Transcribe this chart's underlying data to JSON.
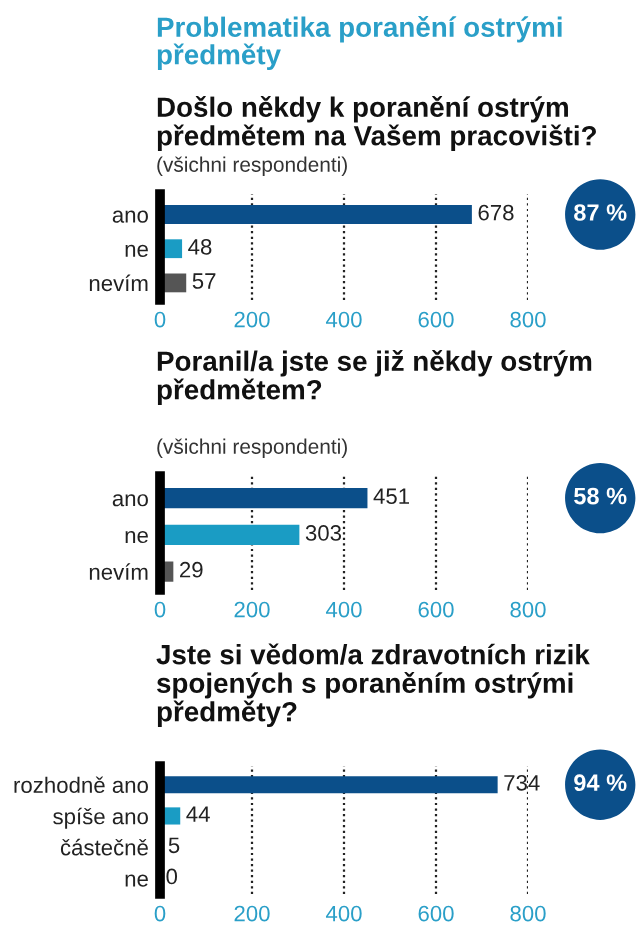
{
  "chart_data": [
    {
      "type": "bar",
      "orientation": "horizontal",
      "title": "Došlo někdy k poranění ostrým předmětem na Vašem pracovišti?",
      "subtitle": "(všichni respondenti)",
      "annotations": [
        "Problematika poranění ostrými předměty",
        "87 %"
      ],
      "categories": [
        "ano",
        "ne",
        "nevím"
      ],
      "values": [
        678,
        48,
        57
      ],
      "colors": [
        "#0b4f8a",
        "#1a9cc4",
        "#555555"
      ],
      "xlim": [
        0,
        800
      ],
      "xticks": [
        0,
        200,
        400,
        600,
        800
      ],
      "grid": "x",
      "data_labels": true
    },
    {
      "type": "bar",
      "orientation": "horizontal",
      "title": "Poranil/a jste se již někdy ostrým předmětem?",
      "subtitle": "(všichni respondenti)",
      "annotations": [
        "58 %"
      ],
      "categories": [
        "ano",
        "ne",
        "nevím"
      ],
      "values": [
        451,
        303,
        29
      ],
      "colors": [
        "#0b4f8a",
        "#1a9cc4",
        "#555555"
      ],
      "xlim": [
        0,
        800
      ],
      "xticks": [
        0,
        200,
        400,
        600,
        800
      ],
      "grid": "x",
      "data_labels": true
    },
    {
      "type": "bar",
      "orientation": "horizontal",
      "title": "Jste si vědom/a zdravotních rizik spojených s poraněním ostrými předměty?",
      "annotations": [
        "94 %"
      ],
      "categories": [
        "rozhodně ano",
        "spíše ano",
        "částečně",
        "ne"
      ],
      "values": [
        734,
        44,
        5,
        0
      ],
      "colors": [
        "#0b4f8a",
        "#1a9cc4",
        "#555555",
        "#555555"
      ],
      "xlim": [
        0,
        800
      ],
      "xticks": [
        0,
        200,
        400,
        600,
        800
      ],
      "grid": "x",
      "data_labels": true
    }
  ]
}
